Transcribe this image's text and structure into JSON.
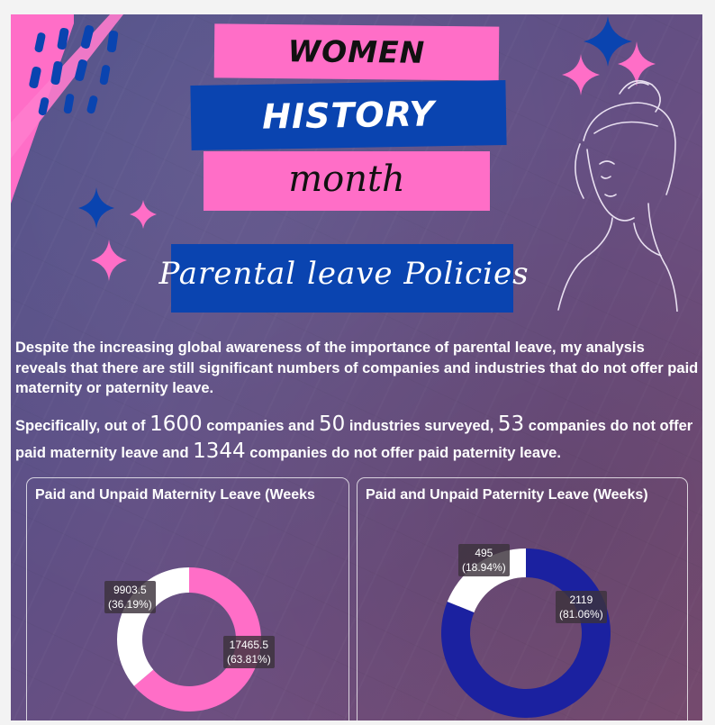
{
  "header": {
    "line1": "WOMEN",
    "line2": "HISTORY",
    "line3": "month",
    "subtitle": "Parental leave Policies"
  },
  "intro": {
    "paragraph1": "Despite the increasing global awareness of the importance of parental leave, my analysis reveals that there are still significant numbers of companies and industries that do not offer paid maternity or paternity leave.",
    "p2_a": "Specifically, out of ",
    "companies_total": "1600",
    "p2_b": " companies and ",
    "industries_total": "50",
    "p2_c": " industries surveyed, ",
    "no_paid_maternity": "53",
    "p2_d": " companies do not offer paid maternity leave and ",
    "no_paid_paternity": "1344",
    "p2_e": " companies do not offer paid paternity leave."
  },
  "colors": {
    "pink": "#ff6ec7",
    "blue": "#0a44b0",
    "navy": "#1b21a0",
    "white": "#ffffff"
  },
  "icons": [
    "sparkle-icon",
    "woman-line-art"
  ],
  "chart_data": [
    {
      "type": "pie",
      "style": "donut",
      "title": "Paid and Unpaid Maternity Leave (Weeks",
      "labels": [
        "17465.5\n(63.81%)",
        "9903.5\n(36.19%)"
      ],
      "values": [
        17465.5,
        9903.5
      ],
      "percent": [
        63.81,
        36.19
      ],
      "colors": [
        "#ff6ec7",
        "#ffffff"
      ]
    },
    {
      "type": "pie",
      "style": "donut",
      "title": "Paid and Unpaid Paternity Leave (Weeks)",
      "labels": [
        "2119\n(81.06%)",
        "495\n(18.94%)"
      ],
      "values": [
        2119,
        495
      ],
      "percent": [
        81.06,
        18.94
      ],
      "colors": [
        "#1b21a0",
        "#ffffff"
      ]
    }
  ]
}
